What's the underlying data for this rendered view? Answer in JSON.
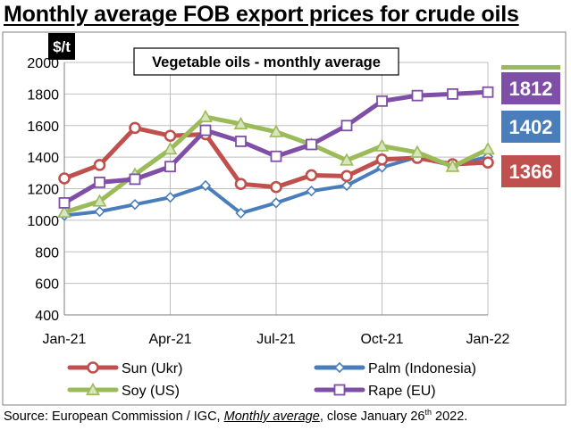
{
  "title": "Monthly average FOB export prices for crude oils",
  "source": {
    "prefix": "Source: European Commission / IGC, ",
    "emphasis": "Monthly average",
    "middle": ", close January 26",
    "superscript": "th",
    "suffix": " 2022."
  },
  "colors": {
    "sun": "#c0504d",
    "palm": "#4a7ebb",
    "soy": "#9bbb59",
    "rape": "#7f4fa8",
    "grid": "#bfbfbf",
    "text": "#000000"
  },
  "chart_data": {
    "type": "line",
    "title": "Vegetable oils - monthly average",
    "ylabel": "$/t",
    "xlabel": "",
    "ylim": [
      400,
      2000
    ],
    "yticks": [
      400,
      600,
      800,
      1000,
      1200,
      1400,
      1600,
      1800,
      2000
    ],
    "x": [
      "Jan-21",
      "Feb-21",
      "Mar-21",
      "Apr-21",
      "May-21",
      "Jun-21",
      "Jul-21",
      "Aug-21",
      "Sep-21",
      "Oct-21",
      "Nov-21",
      "Dec-21",
      "Jan-22"
    ],
    "xtick_labels": [
      {
        "index": 0,
        "label": "Jan-21"
      },
      {
        "index": 3,
        "label": "Apr-21"
      },
      {
        "index": 6,
        "label": "Jul-21"
      },
      {
        "index": 9,
        "label": "Oct-21"
      },
      {
        "index": 12,
        "label": "Jan-22"
      }
    ],
    "grid": true,
    "legend_position": "bottom",
    "series": [
      {
        "key": "sun",
        "name": "Sun (Ukr)",
        "marker": "circle",
        "values": [
          1265,
          1350,
          1585,
          1535,
          1545,
          1230,
          1210,
          1285,
          1280,
          1385,
          1395,
          1355,
          1366
        ]
      },
      {
        "key": "palm",
        "name": "Palm (Indonesia)",
        "marker": "diamond",
        "values": [
          1030,
          1055,
          1100,
          1145,
          1220,
          1045,
          1110,
          1185,
          1220,
          1335,
          1400,
          1345,
          1402
        ]
      },
      {
        "key": "soy",
        "name": "Soy (US)",
        "marker": "triangle",
        "values": [
          1050,
          1120,
          1290,
          1450,
          1655,
          1610,
          1560,
          1480,
          1380,
          1470,
          1430,
          1340,
          1450
        ]
      },
      {
        "key": "rape",
        "name": "Rape (EU)",
        "marker": "square",
        "values": [
          1110,
          1240,
          1260,
          1340,
          1570,
          1500,
          1405,
          1480,
          1600,
          1755,
          1790,
          1800,
          1812
        ]
      }
    ],
    "end_labels": [
      {
        "series": "rape",
        "value": 1812
      },
      {
        "series": "palm",
        "value": 1402
      },
      {
        "series": "sun",
        "value": 1366
      }
    ]
  }
}
